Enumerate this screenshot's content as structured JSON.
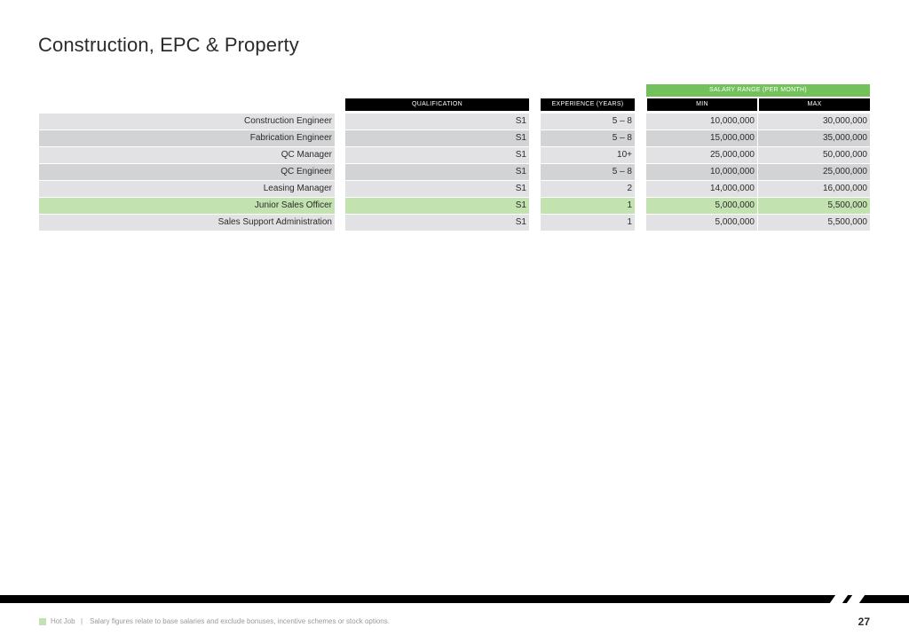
{
  "page": {
    "title": "Construction, EPC & Property",
    "page_number": "27"
  },
  "table": {
    "group_header": "SALARY RANGE (PER MONTH)",
    "headers": {
      "role": "",
      "qualification": "QUALIFICATION",
      "experience": "EXPERIENCE (YEARS)",
      "min": "MIN",
      "max": "MAX"
    },
    "rows": [
      {
        "role": "Construction Engineer",
        "qualification": "S1",
        "experience": "5 – 8",
        "min": "10,000,000",
        "max": "30,000,000",
        "hot": false
      },
      {
        "role": "Fabrication Engineer",
        "qualification": "S1",
        "experience": "5 – 8",
        "min": "15,000,000",
        "max": "35,000,000",
        "hot": false
      },
      {
        "role": "QC Manager",
        "qualification": "S1",
        "experience": "10+",
        "min": "25,000,000",
        "max": "50,000,000",
        "hot": false
      },
      {
        "role": "QC Engineer",
        "qualification": "S1",
        "experience": "5 – 8",
        "min": "10,000,000",
        "max": "25,000,000",
        "hot": false
      },
      {
        "role": "Leasing Manager",
        "qualification": "S1",
        "experience": "2",
        "min": "14,000,000",
        "max": "16,000,000",
        "hot": false
      },
      {
        "role": "Junior Sales Officer",
        "qualification": "S1",
        "experience": "1",
        "min": "5,000,000",
        "max": "5,500,000",
        "hot": true
      },
      {
        "role": "Sales Support Administration",
        "qualification": "S1",
        "experience": "1",
        "min": "5,000,000",
        "max": "5,500,000",
        "hot": false
      }
    ]
  },
  "footer": {
    "legend_label": "Hot Job",
    "separator": "|",
    "note": "Salary figures relate to base salaries and exclude bonuses, incentive schemes or stock options."
  },
  "colors": {
    "accent_green": "#72c15a",
    "hot_row": "#c2e2b0",
    "row_light": "#e2e2e4",
    "row_dark": "#d2d3d5",
    "header_black": "#000000"
  }
}
